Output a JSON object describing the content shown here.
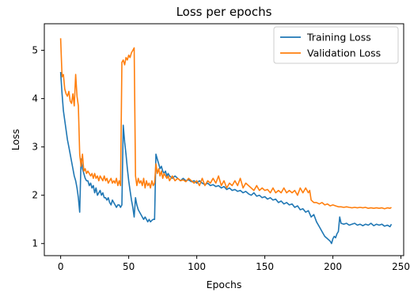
{
  "chart_data": {
    "type": "line",
    "title": "Loss per epochs",
    "xlabel": "Epochs",
    "ylabel": "Loss",
    "xlim": [
      -12,
      252
    ],
    "ylim": [
      0.75,
      5.55
    ],
    "xticks": [
      0,
      50,
      100,
      150,
      200,
      250
    ],
    "yticks": [
      1,
      2,
      3,
      4,
      5
    ],
    "grid": false,
    "legend_position": "top-right",
    "series": [
      {
        "name": "Training Loss",
        "color": "#1f77b4",
        "points": [
          [
            0,
            4.55
          ],
          [
            1,
            4.1
          ],
          [
            2,
            3.75
          ],
          [
            3,
            3.55
          ],
          [
            4,
            3.35
          ],
          [
            5,
            3.15
          ],
          [
            6,
            3.0
          ],
          [
            7,
            2.85
          ],
          [
            8,
            2.7
          ],
          [
            9,
            2.55
          ],
          [
            10,
            2.4
          ],
          [
            11,
            2.3
          ],
          [
            12,
            2.15
          ],
          [
            13,
            1.95
          ],
          [
            14,
            1.65
          ],
          [
            15,
            2.75
          ],
          [
            16,
            2.55
          ],
          [
            17,
            2.45
          ],
          [
            18,
            2.35
          ],
          [
            19,
            2.3
          ],
          [
            20,
            2.3
          ],
          [
            21,
            2.2
          ],
          [
            22,
            2.25
          ],
          [
            23,
            2.15
          ],
          [
            24,
            2.2
          ],
          [
            25,
            2.05
          ],
          [
            26,
            2.15
          ],
          [
            27,
            2.0
          ],
          [
            28,
            2.05
          ],
          [
            29,
            2.1
          ],
          [
            30,
            2.0
          ],
          [
            31,
            2.05
          ],
          [
            32,
            1.95
          ],
          [
            33,
            1.95
          ],
          [
            34,
            1.9
          ],
          [
            35,
            1.95
          ],
          [
            36,
            1.85
          ],
          [
            37,
            1.8
          ],
          [
            38,
            1.9
          ],
          [
            39,
            1.85
          ],
          [
            40,
            1.8
          ],
          [
            41,
            1.75
          ],
          [
            42,
            1.8
          ],
          [
            43,
            1.8
          ],
          [
            44,
            1.75
          ],
          [
            45,
            1.8
          ],
          [
            46,
            3.45
          ],
          [
            47,
            3.1
          ],
          [
            48,
            2.85
          ],
          [
            49,
            2.55
          ],
          [
            50,
            2.3
          ],
          [
            51,
            2.1
          ],
          [
            52,
            1.9
          ],
          [
            53,
            1.75
          ],
          [
            54,
            1.55
          ],
          [
            55,
            1.95
          ],
          [
            56,
            1.8
          ],
          [
            57,
            1.7
          ],
          [
            58,
            1.65
          ],
          [
            59,
            1.6
          ],
          [
            60,
            1.55
          ],
          [
            61,
            1.5
          ],
          [
            62,
            1.55
          ],
          [
            63,
            1.5
          ],
          [
            64,
            1.45
          ],
          [
            65,
            1.5
          ],
          [
            66,
            1.45
          ],
          [
            67,
            1.48
          ],
          [
            68,
            1.5
          ],
          [
            69,
            1.5
          ],
          [
            70,
            2.85
          ],
          [
            71,
            2.75
          ],
          [
            72,
            2.65
          ],
          [
            73,
            2.55
          ],
          [
            74,
            2.6
          ],
          [
            75,
            2.5
          ],
          [
            76,
            2.45
          ],
          [
            77,
            2.5
          ],
          [
            78,
            2.4
          ],
          [
            79,
            2.45
          ],
          [
            80,
            2.4
          ],
          [
            82,
            2.35
          ],
          [
            84,
            2.4
          ],
          [
            86,
            2.35
          ],
          [
            88,
            2.3
          ],
          [
            90,
            2.35
          ],
          [
            92,
            2.3
          ],
          [
            94,
            2.32
          ],
          [
            96,
            2.28
          ],
          [
            98,
            2.3
          ],
          [
            100,
            2.25
          ],
          [
            102,
            2.3
          ],
          [
            104,
            2.25
          ],
          [
            106,
            2.22
          ],
          [
            108,
            2.25
          ],
          [
            110,
            2.2
          ],
          [
            112,
            2.22
          ],
          [
            114,
            2.18
          ],
          [
            116,
            2.2
          ],
          [
            118,
            2.15
          ],
          [
            120,
            2.18
          ],
          [
            122,
            2.12
          ],
          [
            124,
            2.15
          ],
          [
            126,
            2.1
          ],
          [
            128,
            2.12
          ],
          [
            130,
            2.08
          ],
          [
            132,
            2.1
          ],
          [
            134,
            2.05
          ],
          [
            136,
            2.08
          ],
          [
            138,
            2.03
          ],
          [
            140,
            2.0
          ],
          [
            142,
            2.05
          ],
          [
            144,
            1.98
          ],
          [
            146,
            2.0
          ],
          [
            148,
            1.95
          ],
          [
            150,
            1.97
          ],
          [
            152,
            1.92
          ],
          [
            154,
            1.95
          ],
          [
            156,
            1.9
          ],
          [
            158,
            1.92
          ],
          [
            160,
            1.85
          ],
          [
            162,
            1.88
          ],
          [
            164,
            1.82
          ],
          [
            166,
            1.85
          ],
          [
            168,
            1.8
          ],
          [
            170,
            1.82
          ],
          [
            172,
            1.75
          ],
          [
            174,
            1.78
          ],
          [
            176,
            1.7
          ],
          [
            178,
            1.72
          ],
          [
            180,
            1.65
          ],
          [
            182,
            1.68
          ],
          [
            184,
            1.55
          ],
          [
            186,
            1.6
          ],
          [
            188,
            1.45
          ],
          [
            190,
            1.35
          ],
          [
            192,
            1.25
          ],
          [
            194,
            1.15
          ],
          [
            196,
            1.1
          ],
          [
            198,
            1.05
          ],
          [
            199,
            1.0
          ],
          [
            200,
            1.1
          ],
          [
            201,
            1.15
          ],
          [
            202,
            1.12
          ],
          [
            203,
            1.2
          ],
          [
            204,
            1.25
          ],
          [
            205,
            1.55
          ],
          [
            206,
            1.42
          ],
          [
            208,
            1.4
          ],
          [
            210,
            1.42
          ],
          [
            212,
            1.38
          ],
          [
            214,
            1.4
          ],
          [
            216,
            1.42
          ],
          [
            218,
            1.38
          ],
          [
            220,
            1.4
          ],
          [
            222,
            1.37
          ],
          [
            224,
            1.4
          ],
          [
            226,
            1.38
          ],
          [
            228,
            1.42
          ],
          [
            230,
            1.37
          ],
          [
            232,
            1.4
          ],
          [
            234,
            1.38
          ],
          [
            236,
            1.4
          ],
          [
            238,
            1.36
          ],
          [
            240,
            1.38
          ],
          [
            242,
            1.35
          ],
          [
            243,
            1.4
          ]
        ]
      },
      {
        "name": "Validation Loss",
        "color": "#ff7f0e",
        "points": [
          [
            0,
            5.25
          ],
          [
            1,
            4.45
          ],
          [
            2,
            4.5
          ],
          [
            3,
            4.2
          ],
          [
            4,
            4.1
          ],
          [
            5,
            4.05
          ],
          [
            6,
            4.15
          ],
          [
            7,
            3.95
          ],
          [
            8,
            3.9
          ],
          [
            9,
            4.1
          ],
          [
            10,
            3.85
          ],
          [
            11,
            4.5
          ],
          [
            12,
            4.05
          ],
          [
            13,
            3.85
          ],
          [
            14,
            2.85
          ],
          [
            15,
            2.6
          ],
          [
            16,
            2.85
          ],
          [
            17,
            2.5
          ],
          [
            18,
            2.55
          ],
          [
            19,
            2.45
          ],
          [
            20,
            2.5
          ],
          [
            21,
            2.45
          ],
          [
            22,
            2.4
          ],
          [
            23,
            2.45
          ],
          [
            24,
            2.35
          ],
          [
            25,
            2.45
          ],
          [
            26,
            2.35
          ],
          [
            27,
            2.4
          ],
          [
            28,
            2.3
          ],
          [
            29,
            2.4
          ],
          [
            30,
            2.35
          ],
          [
            31,
            2.3
          ],
          [
            32,
            2.4
          ],
          [
            33,
            2.3
          ],
          [
            34,
            2.35
          ],
          [
            35,
            2.25
          ],
          [
            36,
            2.3
          ],
          [
            37,
            2.35
          ],
          [
            38,
            2.25
          ],
          [
            39,
            2.3
          ],
          [
            40,
            2.25
          ],
          [
            41,
            2.35
          ],
          [
            42,
            2.2
          ],
          [
            43,
            2.3
          ],
          [
            44,
            2.2
          ],
          [
            45,
            4.75
          ],
          [
            46,
            4.8
          ],
          [
            47,
            4.7
          ],
          [
            48,
            4.85
          ],
          [
            49,
            4.8
          ],
          [
            50,
            4.9
          ],
          [
            51,
            4.85
          ],
          [
            52,
            4.95
          ],
          [
            53,
            5.0
          ],
          [
            54,
            5.05
          ],
          [
            55,
            2.4
          ],
          [
            56,
            2.2
          ],
          [
            57,
            2.35
          ],
          [
            58,
            2.25
          ],
          [
            59,
            2.3
          ],
          [
            60,
            2.2
          ],
          [
            61,
            2.35
          ],
          [
            62,
            2.15
          ],
          [
            63,
            2.3
          ],
          [
            64,
            2.2
          ],
          [
            65,
            2.25
          ],
          [
            66,
            2.15
          ],
          [
            67,
            2.3
          ],
          [
            68,
            2.2
          ],
          [
            69,
            2.25
          ],
          [
            70,
            2.65
          ],
          [
            71,
            2.45
          ],
          [
            72,
            2.55
          ],
          [
            73,
            2.4
          ],
          [
            74,
            2.5
          ],
          [
            75,
            2.35
          ],
          [
            76,
            2.45
          ],
          [
            77,
            2.4
          ],
          [
            78,
            2.35
          ],
          [
            79,
            2.4
          ],
          [
            80,
            2.3
          ],
          [
            82,
            2.4
          ],
          [
            84,
            2.3
          ],
          [
            86,
            2.35
          ],
          [
            88,
            2.3
          ],
          [
            90,
            2.32
          ],
          [
            92,
            2.28
          ],
          [
            94,
            2.35
          ],
          [
            96,
            2.3
          ],
          [
            98,
            2.25
          ],
          [
            100,
            2.3
          ],
          [
            102,
            2.2
          ],
          [
            104,
            2.35
          ],
          [
            106,
            2.2
          ],
          [
            108,
            2.3
          ],
          [
            110,
            2.25
          ],
          [
            112,
            2.35
          ],
          [
            114,
            2.25
          ],
          [
            116,
            2.4
          ],
          [
            118,
            2.2
          ],
          [
            120,
            2.3
          ],
          [
            122,
            2.15
          ],
          [
            124,
            2.25
          ],
          [
            126,
            2.2
          ],
          [
            128,
            2.3
          ],
          [
            130,
            2.2
          ],
          [
            132,
            2.35
          ],
          [
            134,
            2.15
          ],
          [
            136,
            2.25
          ],
          [
            138,
            2.2
          ],
          [
            140,
            2.15
          ],
          [
            142,
            2.1
          ],
          [
            144,
            2.2
          ],
          [
            146,
            2.1
          ],
          [
            148,
            2.15
          ],
          [
            150,
            2.1
          ],
          [
            152,
            2.12
          ],
          [
            154,
            2.05
          ],
          [
            156,
            2.15
          ],
          [
            158,
            2.05
          ],
          [
            160,
            2.1
          ],
          [
            162,
            2.05
          ],
          [
            164,
            2.15
          ],
          [
            166,
            2.05
          ],
          [
            168,
            2.1
          ],
          [
            170,
            2.05
          ],
          [
            172,
            2.1
          ],
          [
            174,
            2.0
          ],
          [
            176,
            2.15
          ],
          [
            178,
            2.05
          ],
          [
            180,
            2.15
          ],
          [
            182,
            2.05
          ],
          [
            183,
            2.1
          ],
          [
            184,
            1.9
          ],
          [
            186,
            1.85
          ],
          [
            188,
            1.85
          ],
          [
            190,
            1.82
          ],
          [
            192,
            1.85
          ],
          [
            194,
            1.8
          ],
          [
            196,
            1.82
          ],
          [
            198,
            1.78
          ],
          [
            200,
            1.8
          ],
          [
            202,
            1.78
          ],
          [
            204,
            1.76
          ],
          [
            206,
            1.76
          ],
          [
            208,
            1.75
          ],
          [
            210,
            1.76
          ],
          [
            212,
            1.75
          ],
          [
            214,
            1.74
          ],
          [
            216,
            1.75
          ],
          [
            218,
            1.74
          ],
          [
            220,
            1.75
          ],
          [
            222,
            1.74
          ],
          [
            224,
            1.75
          ],
          [
            226,
            1.73
          ],
          [
            228,
            1.74
          ],
          [
            230,
            1.73
          ],
          [
            232,
            1.74
          ],
          [
            234,
            1.73
          ],
          [
            236,
            1.74
          ],
          [
            238,
            1.72
          ],
          [
            240,
            1.74
          ],
          [
            242,
            1.73
          ],
          [
            243,
            1.75
          ]
        ]
      }
    ]
  }
}
